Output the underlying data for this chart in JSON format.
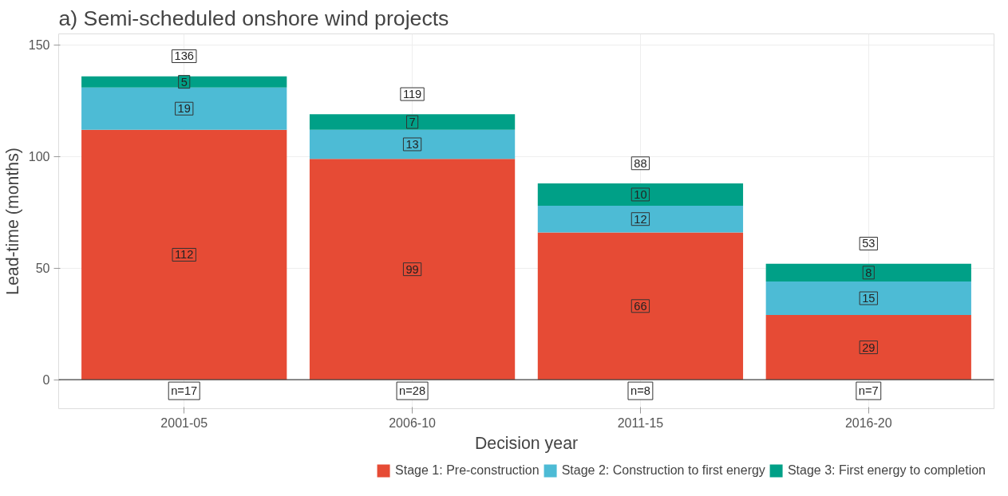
{
  "chart_data": {
    "type": "bar",
    "title": "a) Semi-scheduled onshore wind projects",
    "xlabel": "Decision year",
    "ylabel": "Lead-time (months)",
    "categories": [
      "2001-05",
      "2006-10",
      "2011-15",
      "2016-20"
    ],
    "stacked": true,
    "series": [
      {
        "name": "Stage 1: Pre-construction",
        "color": "#e64b35",
        "values": [
          112,
          99,
          66,
          29
        ]
      },
      {
        "name": "Stage 2: Construction to first energy",
        "color": "#4dbbd5",
        "values": [
          19,
          13,
          12,
          15
        ]
      },
      {
        "name": "Stage 3: First energy to completion",
        "color": "#00a087",
        "values": [
          5,
          7,
          10,
          8
        ]
      }
    ],
    "totals": [
      "136",
      "119",
      "88",
      "53"
    ],
    "data_labels": true,
    "annotations": [
      {
        "text": "n=17",
        "x": "2001-05",
        "y": -5
      },
      {
        "text": "n=28",
        "x": "2006-10",
        "y": -5
      },
      {
        "text": "n=8",
        "x": "2011-15",
        "y": -5
      },
      {
        "text": "n=7",
        "x": "2016-20",
        "y": -5
      }
    ],
    "ref_lines": [
      {
        "axis": "y",
        "value": 0,
        "color": "#444444"
      }
    ],
    "ylim": [
      -13,
      155
    ],
    "yticks": [
      0,
      50,
      100,
      150
    ],
    "grid": true,
    "legend": "bottom"
  }
}
